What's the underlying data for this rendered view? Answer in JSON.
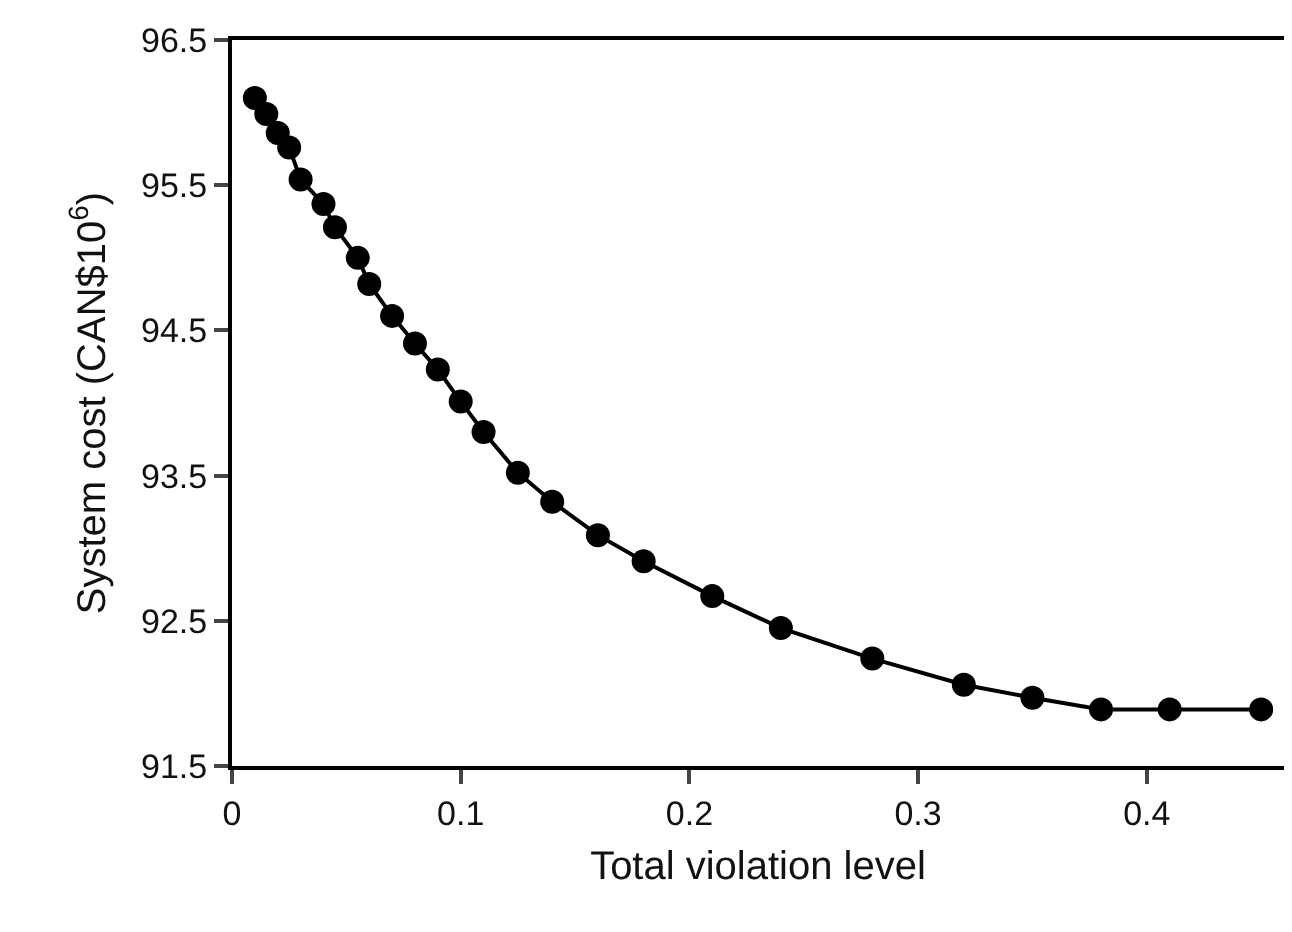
{
  "chart_data": {
    "type": "line",
    "xlabel": "Total violation level",
    "ylabel": "System cost (CAN$10$^{6}$)",
    "x": [
      0.01,
      0.015,
      0.02,
      0.025,
      0.03,
      0.04,
      0.045,
      0.055,
      0.06,
      0.07,
      0.08,
      0.09,
      0.1,
      0.11,
      0.125,
      0.14,
      0.16,
      0.18,
      0.21,
      0.24,
      0.28,
      0.32,
      0.35,
      0.38,
      0.41,
      0.45
    ],
    "series": [
      {
        "color": "#000000",
        "values": [
          96.1,
          95.99,
          95.86,
          95.76,
          95.54,
          95.37,
          95.21,
          95.0,
          94.82,
          94.6,
          94.41,
          94.23,
          94.01,
          93.8,
          93.52,
          93.32,
          93.09,
          92.91,
          92.67,
          92.45,
          92.24,
          92.06,
          91.97,
          91.89,
          91.89,
          91.89
        ]
      }
    ],
    "xlim": [
      0,
      0.46
    ],
    "xticks": [
      0,
      0.1,
      0.2,
      0.3,
      0.4
    ],
    "ylim": [
      91.5,
      96.5
    ],
    "yticks": [
      91.5,
      92.5,
      93.5,
      94.5,
      95.5,
      96.5
    ],
    "marker": "circle",
    "line_style": "solid"
  }
}
